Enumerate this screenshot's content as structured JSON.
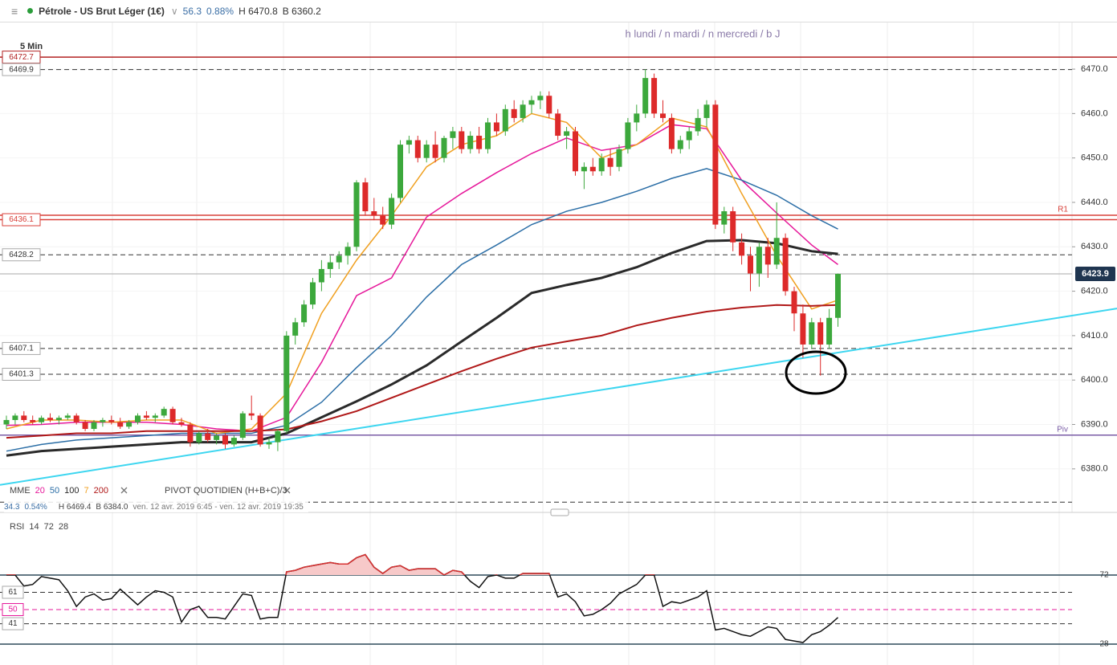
{
  "header": {
    "symbol": "Pétrole - US Brut Léger (1€)",
    "change": "56.3",
    "change_pct": "0.88%",
    "high": "H 6470.8",
    "low": "B 6360.2"
  },
  "chart_data": [
    {
      "type": "candlestick",
      "timeframe": "5 Min",
      "subtitle": "h lundi / n mardi / n mercredi / b J",
      "up_color": "#3ca83c",
      "down_color": "#dd2a2a",
      "candles": [
        [
          6390,
          6392,
          6389,
          6391
        ],
        [
          6391,
          6392.5,
          6390,
          6392
        ],
        [
          6392,
          6393,
          6390.5,
          6391
        ],
        [
          6391,
          6392,
          6390,
          6390.5
        ],
        [
          6390.5,
          6392,
          6390,
          6391.5
        ],
        [
          6391.5,
          6392.5,
          6390.5,
          6391
        ],
        [
          6391,
          6392,
          6390,
          6391.5
        ],
        [
          6391.5,
          6392.5,
          6391,
          6392
        ],
        [
          6392,
          6392.5,
          6390,
          6390.5
        ],
        [
          6390.5,
          6391,
          6388.5,
          6389
        ],
        [
          6389,
          6391,
          6388.5,
          6390.5
        ],
        [
          6390.5,
          6391.5,
          6389.5,
          6391
        ],
        [
          6391,
          6392,
          6390,
          6390.5
        ],
        [
          6390.5,
          6391.5,
          6389,
          6389.5
        ],
        [
          6389.5,
          6391,
          6389,
          6390.5
        ],
        [
          6390.5,
          6392.5,
          6390,
          6392
        ],
        [
          6392,
          6393,
          6391,
          6391.5
        ],
        [
          6391.5,
          6392.5,
          6390.5,
          6392
        ],
        [
          6392,
          6394,
          6391.5,
          6393.5
        ],
        [
          6393.5,
          6394,
          6390,
          6390.5
        ],
        [
          6390.5,
          6391.5,
          6389.5,
          6390
        ],
        [
          6390,
          6390.5,
          6385,
          6386
        ],
        [
          6386,
          6388.5,
          6385.5,
          6388
        ],
        [
          6388,
          6389,
          6386,
          6386.5
        ],
        [
          6386.5,
          6388,
          6385.5,
          6387.5
        ],
        [
          6387.5,
          6388,
          6384.5,
          6385.5
        ],
        [
          6385.5,
          6387.5,
          6385,
          6387
        ],
        [
          6387,
          6393,
          6386.5,
          6392.5
        ],
        [
          6392.5,
          6396.5,
          6391,
          6392
        ],
        [
          6392,
          6392.5,
          6385,
          6385.5
        ],
        [
          6385.5,
          6387,
          6384.5,
          6386
        ],
        [
          6386,
          6389,
          6384,
          6388.5
        ],
        [
          6388.5,
          6411,
          6388,
          6410
        ],
        [
          6410,
          6414,
          6408,
          6413
        ],
        [
          6413,
          6418,
          6412,
          6417
        ],
        [
          6417,
          6423,
          6416,
          6422
        ],
        [
          6422,
          6427,
          6420,
          6425
        ],
        [
          6425,
          6428,
          6423,
          6426.5
        ],
        [
          6426.5,
          6429,
          6425,
          6428
        ],
        [
          6428,
          6431,
          6426,
          6430
        ],
        [
          6430,
          6445,
          6429,
          6444.5
        ],
        [
          6444.5,
          6445.5,
          6437,
          6438
        ],
        [
          6438,
          6441,
          6436,
          6437
        ],
        [
          6437,
          6439,
          6434,
          6435
        ],
        [
          6435,
          6442,
          6434,
          6441
        ],
        [
          6441,
          6454,
          6440,
          6453
        ],
        [
          6453,
          6455,
          6451,
          6454
        ],
        [
          6454,
          6455,
          6449,
          6450
        ],
        [
          6450,
          6454,
          6449,
          6453
        ],
        [
          6453,
          6456,
          6449,
          6450
        ],
        [
          6450,
          6455,
          6449,
          6454.5
        ],
        [
          6454.5,
          6457,
          6452,
          6456
        ],
        [
          6456,
          6457,
          6451,
          6452
        ],
        [
          6452,
          6456,
          6451,
          6455
        ],
        [
          6455,
          6457,
          6451,
          6452
        ],
        [
          6452,
          6459,
          6451,
          6458
        ],
        [
          6458,
          6460,
          6455,
          6456
        ],
        [
          6456,
          6462,
          6455,
          6461
        ],
        [
          6461,
          6463,
          6458,
          6459
        ],
        [
          6459,
          6463,
          6458,
          6462
        ],
        [
          6462,
          6464,
          6460,
          6463
        ],
        [
          6463,
          6465,
          6461,
          6464
        ],
        [
          6464,
          6465,
          6459,
          6460
        ],
        [
          6460,
          6461,
          6454,
          6455
        ],
        [
          6455,
          6457,
          6452,
          6456
        ],
        [
          6456,
          6457,
          6446,
          6447
        ],
        [
          6447,
          6449,
          6443,
          6448
        ],
        [
          6448,
          6450,
          6446,
          6447
        ],
        [
          6447,
          6451,
          6446,
          6450
        ],
        [
          6450,
          6452,
          6446,
          6448
        ],
        [
          6448,
          6453,
          6447,
          6452
        ],
        [
          6452,
          6459,
          6451,
          6458
        ],
        [
          6458,
          6462,
          6456,
          6460
        ],
        [
          6460,
          6470,
          6459,
          6468
        ],
        [
          6468,
          6469,
          6459,
          6460
        ],
        [
          6460,
          6463,
          6458,
          6459
        ],
        [
          6459,
          6460,
          6451,
          6452
        ],
        [
          6452,
          6455,
          6451,
          6454
        ],
        [
          6454,
          6457,
          6452,
          6456
        ],
        [
          6456,
          6461,
          6455,
          6459
        ],
        [
          6459,
          6463,
          6457,
          6462
        ],
        [
          6462,
          6463,
          6434,
          6435
        ],
        [
          6435,
          6439,
          6433,
          6438
        ],
        [
          6438,
          6439,
          6429,
          6431
        ],
        [
          6431,
          6433,
          6426,
          6428
        ],
        [
          6428,
          6430,
          6420,
          6424
        ],
        [
          6424,
          6431,
          6421,
          6430
        ],
        [
          6430,
          6432,
          6423,
          6426
        ],
        [
          6426,
          6440,
          6425,
          6432
        ],
        [
          6432,
          6433,
          6419,
          6420
        ],
        [
          6420,
          6421,
          6411,
          6415
        ],
        [
          6415,
          6417,
          6405,
          6408
        ],
        [
          6408,
          6414,
          6407,
          6413
        ],
        [
          6413,
          6414,
          6401,
          6408
        ],
        [
          6408,
          6416,
          6407,
          6414
        ],
        [
          6414,
          6424,
          6412,
          6423.9
        ]
      ],
      "legend_title": "MME",
      "series_x": [
        0,
        4,
        8,
        12,
        16,
        20,
        24,
        28,
        32,
        36,
        40,
        44,
        48,
        52,
        56,
        60,
        64,
        68,
        72,
        76,
        80,
        84,
        88,
        92,
        95
      ],
      "series": [
        {
          "name": "20",
          "color": "#e6179a",
          "width": 1.5,
          "values": [
            6389.8,
            6390,
            6390.5,
            6390.5,
            6390.5,
            6390,
            6389,
            6388.5,
            6391.6,
            6404,
            6419,
            6423,
            6436.7,
            6442,
            6446.7,
            6451,
            6454.5,
            6451.7,
            6453,
            6457.5,
            6456.6,
            6445,
            6437.6,
            6430.4,
            6426
          ]
        },
        {
          "name": "50",
          "color": "#2b6ea6",
          "width": 1.5,
          "values": [
            6384,
            6385.5,
            6386.5,
            6387,
            6387.5,
            6388,
            6388,
            6388,
            6389.8,
            6395,
            6402.8,
            6410,
            6418.7,
            6426,
            6430.4,
            6435,
            6438,
            6440,
            6442.5,
            6445.4,
            6447.6,
            6445,
            6441.6,
            6437,
            6434
          ]
        },
        {
          "name": "100",
          "color": "#2a2a2a",
          "width": 3,
          "values": [
            6383,
            6384,
            6384.5,
            6385,
            6385.5,
            6386,
            6386,
            6386,
            6388,
            6391.6,
            6395.2,
            6399,
            6403.3,
            6408.7,
            6414,
            6419.6,
            6421.4,
            6423,
            6425.4,
            6428.6,
            6431.3,
            6431.5,
            6430.8,
            6429,
            6428.4
          ]
        },
        {
          "name": "7",
          "color": "#f0a020",
          "width": 1.5,
          "values": [
            6389,
            6391,
            6391,
            6390.5,
            6391,
            6391,
            6388,
            6389,
            6397,
            6415,
            6427,
            6437,
            6448,
            6453,
            6455,
            6460,
            6458,
            6450,
            6453,
            6459,
            6457,
            6442,
            6428,
            6416,
            6418
          ]
        },
        {
          "name": "200",
          "color": "#b01818",
          "width": 2,
          "values": [
            6387,
            6387.5,
            6388,
            6388,
            6388.5,
            6388.5,
            6388.5,
            6388.5,
            6388.9,
            6390.7,
            6393,
            6396,
            6399,
            6402,
            6404.8,
            6407.3,
            6408.7,
            6410,
            6412.3,
            6414,
            6415.4,
            6416.3,
            6416.9,
            6416.7,
            6416.9
          ]
        }
      ],
      "indicator": "PIVOT QUOTIDIEN (H+B+C)/3",
      "info": {
        "change": "34.3",
        "change_pct": "0.54%",
        "high": "H 6469.4",
        "low": "B 6384.0",
        "range": "ven. 12 avr. 2019 6:45 - ven. 12 avr. 2019 19:35"
      },
      "levels": [
        {
          "value": 6472.7,
          "label": "6472.7",
          "style": "solid",
          "color": "#b22222"
        },
        {
          "value": 6469.9,
          "label": "6469.9",
          "style": "dash",
          "color": "#333333"
        },
        {
          "value": 6437.1,
          "label": "R1",
          "style": "solid",
          "color": "#d9413a",
          "side": "right"
        },
        {
          "value": 6436.1,
          "label": "6436.1",
          "style": "solid",
          "color": "#d9413a"
        },
        {
          "value": 6428.2,
          "label": "6428.2",
          "style": "dash",
          "color": "#333333"
        },
        {
          "value": 6407.1,
          "label": "6407.1",
          "style": "dash",
          "color": "#333333"
        },
        {
          "value": 6401.3,
          "label": "6401.3",
          "style": "dash",
          "color": "#333333"
        },
        {
          "value": 6387.6,
          "label": "Piv",
          "style": "solid",
          "color": "#7b5ea7",
          "side": "right"
        },
        {
          "value": 6372.5,
          "style": "dash",
          "color": "#333333"
        }
      ],
      "last": 6423.9,
      "trendline": {
        "color": "#3dd6f0",
        "start": 6376.4,
        "end": 6416.1
      },
      "ylim": [
        6370.2,
        6480.5
      ],
      "yticks": [
        {
          "value": 6380,
          "label": "6380.0"
        },
        {
          "value": 6390,
          "label": "6390.0"
        },
        {
          "value": 6400,
          "label": "6400.0"
        },
        {
          "value": 6410,
          "label": "6410.0"
        },
        {
          "value": 6420,
          "label": "6420.0"
        },
        {
          "value": 6430,
          "label": "6430.0"
        },
        {
          "value": 6440,
          "label": "6440.0"
        },
        {
          "value": 6450,
          "label": "6450.0"
        },
        {
          "value": 6460,
          "label": "6460.0"
        },
        {
          "value": 6470,
          "label": "6470.0"
        }
      ],
      "grid": true
    },
    {
      "type": "line",
      "title": "RSI",
      "params": [
        14,
        72,
        28
      ],
      "color": "#111111",
      "over_color": "#d93030",
      "fill_color": "#f7c9c9",
      "values": [
        72,
        72,
        65,
        66,
        71,
        70,
        69,
        62,
        52,
        58,
        60,
        56,
        57,
        63,
        58,
        53,
        58,
        62,
        61,
        58,
        42,
        50,
        52,
        45,
        45,
        44,
        52,
        60,
        59,
        44,
        45,
        45,
        74,
        75,
        77,
        78,
        79,
        80,
        79,
        79,
        83,
        85,
        77,
        73,
        77,
        78,
        75,
        76,
        76,
        76,
        72,
        75,
        74,
        68,
        64,
        71,
        72,
        70,
        70,
        73,
        73,
        73,
        73,
        58,
        60,
        55,
        46,
        47,
        50,
        54,
        60,
        63,
        66,
        72,
        72,
        52,
        55,
        54,
        56,
        58,
        62,
        37,
        38,
        36,
        34,
        33,
        36,
        39,
        38,
        31,
        30,
        29,
        34,
        36,
        40,
        45
      ],
      "ylim": [
        14.7,
        108.3
      ],
      "levels": [
        {
          "value": 72,
          "style": "solid",
          "color": "#2e4a5a",
          "side": "right"
        },
        {
          "value": 61,
          "style": "dash",
          "color": "#333333"
        },
        {
          "value": 50,
          "style": "dash",
          "color": "#e6179a"
        },
        {
          "value": 41,
          "style": "dash",
          "color": "#333333"
        },
        {
          "value": 28,
          "style": "solid",
          "color": "#2e4a5a",
          "side": "right"
        }
      ]
    }
  ]
}
